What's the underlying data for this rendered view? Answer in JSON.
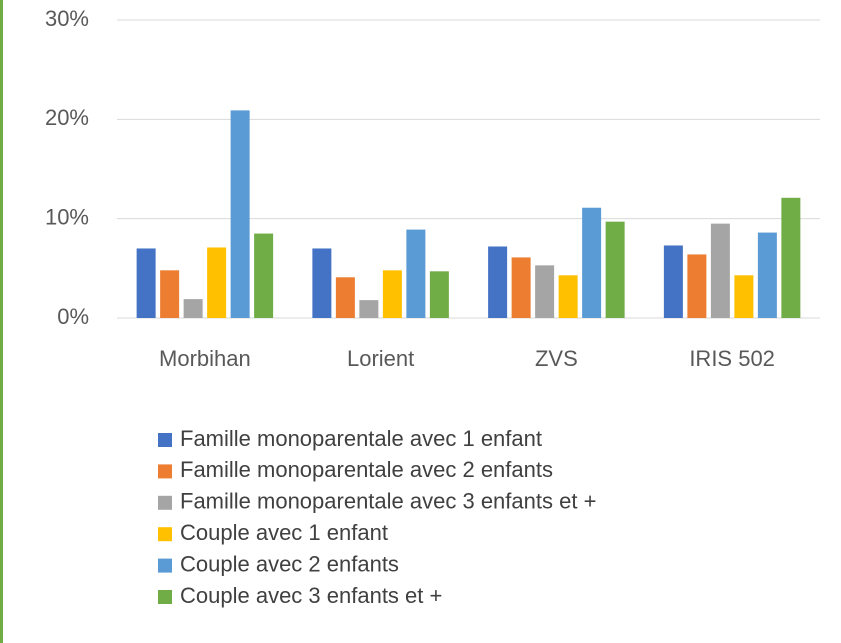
{
  "chart_data": {
    "type": "bar",
    "categories": [
      "Morbihan",
      "Lorient",
      "ZVS",
      "IRIS 502"
    ],
    "series": [
      {
        "name": "Famille monoparentale avec 1 enfant",
        "color": "#4472c4",
        "values": [
          7.0,
          7.0,
          7.2,
          7.3
        ]
      },
      {
        "name": "Famille monoparentale avec 2 enfants",
        "color": "#ed7d31",
        "values": [
          4.8,
          4.1,
          6.1,
          6.4
        ]
      },
      {
        "name": "Famille monoparentale avec 3 enfants et +",
        "color": "#a5a5a5",
        "values": [
          1.9,
          1.8,
          5.3,
          9.5
        ]
      },
      {
        "name": "Couple avec 1 enfant",
        "color": "#ffc000",
        "values": [
          7.1,
          4.8,
          4.3,
          4.3
        ]
      },
      {
        "name": "Couple avec 2 enfants",
        "color": "#5b9bd5",
        "values": [
          20.9,
          8.9,
          11.1,
          8.6
        ]
      },
      {
        "name": "Couple avec 3 enfants et +",
        "color": "#70ad47",
        "values": [
          8.5,
          4.7,
          9.7,
          12.1
        ]
      }
    ],
    "ylim": [
      0,
      30
    ],
    "yticks": [
      {
        "value": 0,
        "label": "0%"
      },
      {
        "value": 10,
        "label": "10%"
      },
      {
        "value": 20,
        "label": "20%"
      },
      {
        "value": 30,
        "label": "30%"
      }
    ],
    "grid": true,
    "legend": "bottom"
  }
}
